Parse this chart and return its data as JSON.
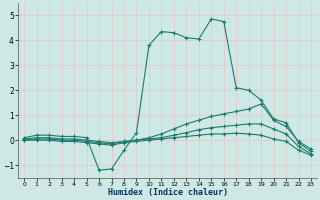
{
  "xlabel": "Humidex (Indice chaleur)",
  "background_color": "#cee9e5",
  "grid_color": "#e8c8c8",
  "line_color": "#1a7a6e",
  "xlim": [
    -0.5,
    23.5
  ],
  "ylim": [
    -1.5,
    5.5
  ],
  "xtick_labels": [
    "0",
    "1",
    "2",
    "3",
    "4",
    "5",
    "6",
    "7",
    "8",
    "9",
    "10",
    "11",
    "12",
    "13",
    "14",
    "15",
    "16",
    "17",
    "18",
    "19",
    "20",
    "21",
    "22",
    "23"
  ],
  "yticks": [
    -1,
    0,
    1,
    2,
    3,
    4,
    5
  ],
  "lines": [
    {
      "x": [
        0,
        1,
        2,
        3,
        4,
        5,
        6,
        7,
        8,
        9,
        10,
        11,
        12,
        13,
        14,
        15,
        16,
        17,
        18,
        19,
        20,
        21,
        22,
        23
      ],
      "y": [
        0.1,
        0.2,
        0.2,
        0.15,
        0.15,
        0.1,
        -1.2,
        -1.15,
        -0.4,
        0.3,
        3.8,
        4.35,
        4.3,
        4.1,
        4.05,
        4.85,
        4.75,
        2.1,
        2.0,
        1.6,
        0.85,
        0.7,
        -0.1,
        -0.45
      ]
    },
    {
      "x": [
        0,
        1,
        2,
        3,
        4,
        5,
        6,
        7,
        8,
        9,
        10,
        11,
        12,
        13,
        14,
        15,
        16,
        17,
        18,
        19,
        20,
        21,
        22,
        23
      ],
      "y": [
        0.05,
        0.1,
        0.1,
        0.05,
        0.05,
        0.0,
        -0.05,
        -0.1,
        -0.05,
        0.0,
        0.1,
        0.25,
        0.45,
        0.65,
        0.8,
        0.95,
        1.05,
        1.15,
        1.25,
        1.45,
        0.8,
        0.55,
        -0.05,
        -0.35
      ]
    },
    {
      "x": [
        0,
        1,
        2,
        3,
        4,
        5,
        6,
        7,
        8,
        9,
        10,
        11,
        12,
        13,
        14,
        15,
        16,
        17,
        18,
        19,
        20,
        21,
        22,
        23
      ],
      "y": [
        0.0,
        0.05,
        0.05,
        0.0,
        0.0,
        -0.05,
        -0.1,
        -0.15,
        -0.05,
        0.0,
        0.05,
        0.1,
        0.2,
        0.3,
        0.42,
        0.5,
        0.55,
        0.6,
        0.65,
        0.65,
        0.45,
        0.25,
        -0.25,
        -0.55
      ]
    },
    {
      "x": [
        0,
        1,
        2,
        3,
        4,
        5,
        6,
        7,
        8,
        9,
        10,
        11,
        12,
        13,
        14,
        15,
        16,
        17,
        18,
        19,
        20,
        21,
        22,
        23
      ],
      "y": [
        0.0,
        0.0,
        0.0,
        -0.05,
        -0.05,
        -0.1,
        -0.15,
        -0.2,
        -0.1,
        -0.05,
        0.0,
        0.05,
        0.1,
        0.15,
        0.2,
        0.25,
        0.25,
        0.28,
        0.25,
        0.2,
        0.05,
        -0.05,
        -0.4,
        -0.6
      ]
    }
  ]
}
